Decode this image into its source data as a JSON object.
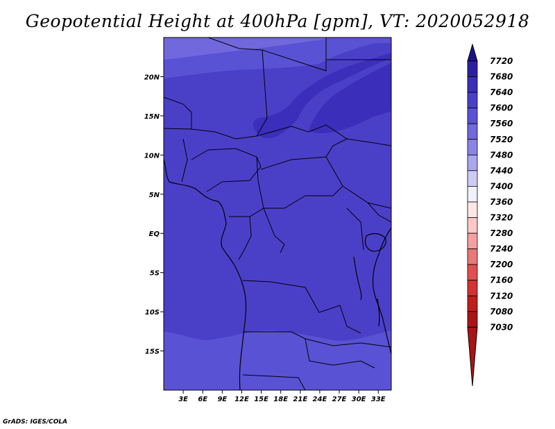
{
  "title": "Geopotential Height at 400hPa [gpm], VT: 2020052918",
  "credit": "GrADS: IGES/COLA",
  "map": {
    "lon_range": [
      0,
      35
    ],
    "lat_range": [
      -20,
      25
    ],
    "lon_ticks": [
      {
        "value": 3,
        "label": "3E"
      },
      {
        "value": 6,
        "label": "6E"
      },
      {
        "value": 9,
        "label": "9E"
      },
      {
        "value": 12,
        "label": "12E"
      },
      {
        "value": 15,
        "label": "15E"
      },
      {
        "value": 18,
        "label": "18E"
      },
      {
        "value": 21,
        "label": "21E"
      },
      {
        "value": 24,
        "label": "24E"
      },
      {
        "value": 27,
        "label": "27E"
      },
      {
        "value": 30,
        "label": "30E"
      },
      {
        "value": 33,
        "label": "33E"
      }
    ],
    "lat_ticks": [
      {
        "value": 20,
        "label": "20N"
      },
      {
        "value": 15,
        "label": "15N"
      },
      {
        "value": 10,
        "label": "10N"
      },
      {
        "value": 5,
        "label": "5N"
      },
      {
        "value": 0,
        "label": "EQ"
      },
      {
        "value": -5,
        "label": "5S"
      },
      {
        "value": -10,
        "label": "10S"
      },
      {
        "value": -15,
        "label": "15S"
      }
    ]
  },
  "colorbar": {
    "levels": [
      "7720",
      "7680",
      "7640",
      "7600",
      "7560",
      "7520",
      "7480",
      "7440",
      "7400",
      "7360",
      "7320",
      "7280",
      "7240",
      "7200",
      "7160",
      "7120",
      "7080",
      "7030"
    ],
    "colors": [
      "#1e0f8c",
      "#2d20a0",
      "#3a2ebb",
      "#4a40c8",
      "#5a52d4",
      "#7068dc",
      "#8a84e6",
      "#aaa6ee",
      "#cdcbf6",
      "#f0f0ff",
      "#ffe6e6",
      "#ffc8c8",
      "#f4a0a0",
      "#ea7878",
      "#e05050",
      "#d23232",
      "#be1e1e",
      "#aa1414"
    ]
  },
  "colors": {
    "band_7600": "#4a40c8",
    "band_7640": "#3a2ebb",
    "band_7560": "#5a52d4",
    "band_7520": "#7068dc"
  }
}
